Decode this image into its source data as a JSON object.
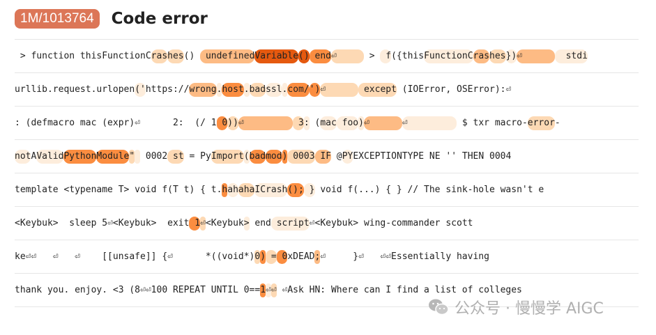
{
  "header": {
    "badge": "1M/1013764",
    "title": "Code error"
  },
  "colors": {
    "badge": "#dc7657",
    "level1": "#fdeddc",
    "level2": "#fdd9b4",
    "level3": "#fdbb84",
    "level4": "#fb8d40",
    "level5": "#e5590f"
  },
  "rows": [
    [
      {
        "t": " > function thisFunctionC",
        "l": 0
      },
      {
        "t": "ras",
        "l": 2
      },
      {
        "t": "hes",
        "l": 2
      },
      {
        "t": "() ",
        "l": 0
      },
      {
        "t": " undefined",
        "l": 3
      },
      {
        "t": "Variable",
        "l": 5
      },
      {
        "t": "()",
        "l": 5
      },
      {
        "t": " end",
        "l": 4
      },
      {
        "t": "⏎     ",
        "l": 2
      },
      {
        "t": " > ",
        "l": 0
      },
      {
        "t": " f",
        "l": 1
      },
      {
        "t": "({this",
        "l": 0
      },
      {
        "t": "FunctionC",
        "l": 1
      },
      {
        "t": "ras",
        "l": 3
      },
      {
        "t": "hes",
        "l": 2
      },
      {
        "t": "})",
        "l": 1
      },
      {
        "t": "⏎      ",
        "l": 3
      },
      {
        "t": "  stdi",
        "l": 1
      }
    ],
    [
      {
        "t": "urllib.request.urlopen",
        "l": 0
      },
      {
        "t": "('",
        "l": 1
      },
      {
        "t": "https://",
        "l": 0
      },
      {
        "t": "wrong",
        "l": 3
      },
      {
        "t": ".",
        "l": 1
      },
      {
        "t": "host",
        "l": 4
      },
      {
        "t": ".",
        "l": 1
      },
      {
        "t": "bad",
        "l": 2
      },
      {
        "t": "ssl",
        "l": 1
      },
      {
        "t": ".",
        "l": 1
      },
      {
        "t": "com/",
        "l": 4
      },
      {
        "t": "')",
        "l": 4
      },
      {
        "t": "⏎      ",
        "l": 2
      },
      {
        "t": " except",
        "l": 2
      },
      {
        "t": " (IOError, OSError):⏎",
        "l": 0
      }
    ],
    [
      {
        "t": ": (defmacro mac (expr)⏎      2:  (/ 1",
        "l": 0
      },
      {
        "t": " 0",
        "l": 4
      },
      {
        "t": "))",
        "l": 2
      },
      {
        "t": "⏎         ",
        "l": 3
      },
      {
        "t": " 3",
        "l": 2
      },
      {
        "t": ":",
        "l": 1
      },
      {
        "t": " (",
        "l": 0
      },
      {
        "t": "mac",
        "l": 1
      },
      {
        "t": " foo",
        "l": 1
      },
      {
        "t": ")",
        "l": 1
      },
      {
        "t": "⏎      ",
        "l": 3
      },
      {
        "t": "⏎         ",
        "l": 1
      },
      {
        "t": " $ txr macro-",
        "l": 0
      },
      {
        "t": "error",
        "l": 2
      },
      {
        "t": "-",
        "l": 0
      }
    ],
    [
      {
        "t": "not",
        "l": 1
      },
      {
        "t": "A",
        "l": 0
      },
      {
        "t": "Valid",
        "l": 1
      },
      {
        "t": "Python",
        "l": 4
      },
      {
        "t": "Module",
        "l": 4
      },
      {
        "t": "\"",
        "l": 2
      },
      {
        "t": " ",
        "l": 1
      },
      {
        "t": " 0002",
        "l": 0
      },
      {
        "t": " st",
        "l": 2
      },
      {
        "t": " = Py",
        "l": 0
      },
      {
        "t": "Import",
        "l": 2
      },
      {
        "t": "(",
        "l": 1
      },
      {
        "t": "bad",
        "l": 4
      },
      {
        "t": "mod",
        "l": 4
      },
      {
        "t": ")",
        "l": 4
      },
      {
        "t": " 0003",
        "l": 2
      },
      {
        "t": " IF",
        "l": 3
      },
      {
        "t": " @",
        "l": 0
      },
      {
        "t": "PY",
        "l": 1
      },
      {
        "t": "EXCEPTIONTYPE NE '' THEN 0004",
        "l": 0
      }
    ],
    [
      {
        "t": "template <typename T> void f(T t) { t.",
        "l": 0
      },
      {
        "t": "h",
        "l": 4
      },
      {
        "t": "ah",
        "l": 1
      },
      {
        "t": "aha",
        "l": 2
      },
      {
        "t": "ICrash",
        "l": 1
      },
      {
        "t": "();",
        "l": 4
      },
      {
        "t": " }",
        "l": 1
      },
      {
        "t": " void f(...) { } // The sink-hole wasn't e",
        "l": 0
      }
    ],
    [
      {
        "t": "<Keybuk>  sleep 5⏎<Keybuk>  exit",
        "l": 0
      },
      {
        "t": " 1",
        "l": 4
      },
      {
        "t": "⏎",
        "l": 2
      },
      {
        "t": "<Keybuk",
        "l": 0
      },
      {
        "t": ">",
        "l": 1
      },
      {
        "t": " end",
        "l": 0
      },
      {
        "t": " script",
        "l": 1
      },
      {
        "t": "⏎<Keybuk> wing-commander scott",
        "l": 0
      }
    ],
    [
      {
        "t": "ke⏎⏎   ⏎   ⏎    [[unsafe]] {⏎      *((void*)",
        "l": 0
      },
      {
        "t": "0",
        "l": 2
      },
      {
        "t": ")",
        "l": 4
      },
      {
        "t": " =",
        "l": 2
      },
      {
        "t": " 0",
        "l": 4
      },
      {
        "t": "xDEAD",
        "l": 0
      },
      {
        "t": ";",
        "l": 3
      },
      {
        "t": "⏎     }⏎   ⏎⏎Essentially having",
        "l": 0
      }
    ],
    [
      {
        "t": "thank you. enjoy. <3 (8⏎⏎100 REPEAT UNTIL 0==",
        "l": 0
      },
      {
        "t": "1",
        "l": 4
      },
      {
        "t": "⏎",
        "l": 1
      },
      {
        "t": "⏎",
        "l": 2
      },
      {
        "t": " ⏎Ask HN: Where can I find a list of colleges ",
        "l": 0
      }
    ]
  ],
  "watermark": {
    "text": "公众号 · 慢慢学 AIGC",
    "icon": "wechat-icon"
  }
}
